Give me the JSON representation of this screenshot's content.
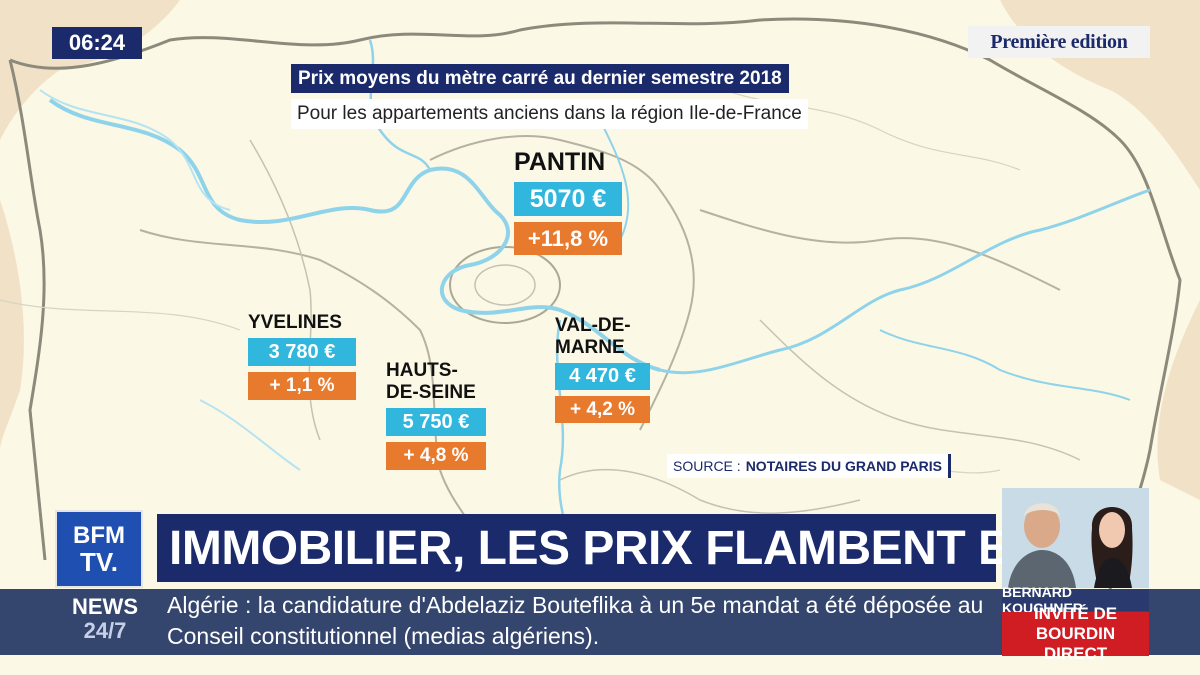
{
  "broadcast": {
    "clock": "06:24",
    "edition": "Première edition",
    "channel_logo_top": "BFM",
    "channel_logo_bottom": "TV.",
    "news_label_1": "NEWS",
    "news_label_2": "24/7"
  },
  "graphic": {
    "headline": "Prix moyens du mètre carré au dernier semestre 2018",
    "subhead": "Pour les appartements anciens dans la région Ile-de-France",
    "regions": [
      {
        "name": "PANTIN",
        "price": "5070 €",
        "change": "+11,8 %"
      },
      {
        "name": "YVELINES",
        "price": "3 780 €",
        "change": "+ 1,1 %"
      },
      {
        "name": "HAUTS-DE-SEINE",
        "name_line1": "HAUTS-",
        "name_line2": "DE-SEINE",
        "price": "5 750 €",
        "change": "+ 4,8 %"
      },
      {
        "name": "VAL-DE-MARNE",
        "name_line1": "VAL-DE-",
        "name_line2": "MARNE",
        "price": "4 470 €",
        "change": "+ 4,2 %"
      }
    ],
    "source_label": "SOURCE :",
    "source_value": "NOTAIRES DU GRAND PARIS"
  },
  "banner": {
    "title": "IMMOBILIER, LES PRIX FLAMBENT EN IDF"
  },
  "ticker": {
    "text": "Algérie : la candidature d'Abdelaziz Bouteflika à un 5e mandat a été déposée au Conseil constitutionnel (medias algériens)."
  },
  "guest": {
    "name": "BERNARD KOUCHNER",
    "role_line1": "INVITÉ DE",
    "role_line2": "BOURDIN DIRECT"
  },
  "colors": {
    "navy": "#1b2a6b",
    "price_blue": "#31b7dd",
    "change_orange": "#e87a2d",
    "map_background": "#fbf8e6",
    "guest_red": "#d01d24"
  }
}
